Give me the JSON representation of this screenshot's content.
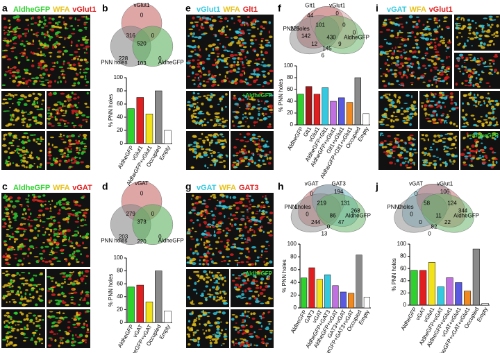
{
  "images": [
    {
      "letter": "a",
      "title": [
        {
          "text": "AldheGFP",
          "color": "#2fd12f"
        },
        {
          "text": "WFA",
          "color": "#e8c21a"
        },
        {
          "text": "vGlut1",
          "color": "#e02020"
        }
      ],
      "inset": null
    },
    {
      "letter": "c",
      "title": [
        {
          "text": "AldheGFP",
          "color": "#2fd12f"
        },
        {
          "text": "WFA",
          "color": "#e8c21a"
        },
        {
          "text": "vGAT",
          "color": "#e02020"
        }
      ],
      "inset": null
    },
    {
      "letter": "e",
      "title": [
        {
          "text": "vGlut1",
          "color": "#35c9e0"
        },
        {
          "text": "WFA",
          "color": "#e8c21a"
        },
        {
          "text": "Glt1",
          "color": "#e02020"
        }
      ],
      "inset": "+AldheGFP"
    },
    {
      "letter": "g",
      "title": [
        {
          "text": "vGAT",
          "color": "#35c9e0"
        },
        {
          "text": "WFA",
          "color": "#e8c21a"
        },
        {
          "text": "GAT3",
          "color": "#e02020"
        }
      ],
      "inset": "+AldheGFP"
    },
    {
      "letter": "i",
      "title": [
        {
          "text": "vGAT",
          "color": "#35c9e0"
        },
        {
          "text": "WFA",
          "color": "#e8c21a"
        },
        {
          "text": "vGlut1",
          "color": "#e02020"
        }
      ],
      "inset": "+AldheGFP"
    }
  ],
  "venns": [
    {
      "letter": "b",
      "sets": [
        {
          "name": "vGlut1",
          "color": "#c96a6a"
        },
        {
          "name": "PNN holes",
          "color": "#8a8a8a"
        },
        {
          "name": "AldheGFP",
          "color": "#5fb05f"
        }
      ],
      "counts": [
        0,
        316,
        0,
        520,
        228,
        103,
        0
      ]
    },
    {
      "letter": "d",
      "sets": [
        {
          "name": "vGAT",
          "color": "#c96a6a"
        },
        {
          "name": "PNN holes",
          "color": "#8a8a8a"
        },
        {
          "name": "AldheGFP",
          "color": "#5fb05f"
        }
      ],
      "counts": [
        0,
        279,
        0,
        373,
        203,
        220,
        0
      ]
    },
    {
      "letter": "f",
      "sets": [
        {
          "name": "Glt1",
          "color": "#b24a4a"
        },
        {
          "name": "vGlut1",
          "color": "#d9a0a0"
        },
        {
          "name": "PNN holes",
          "color": "#8a8a8a"
        },
        {
          "name": "AldheGFP",
          "color": "#5fb05f"
        }
      ],
      "counts": [
        44,
        0,
        225,
        101,
        0,
        142,
        430,
        0,
        12,
        145,
        9,
        6
      ]
    },
    {
      "letter": "h",
      "sets": [
        {
          "name": "vGAT",
          "color": "#c96a6a"
        },
        {
          "name": "GAT3",
          "color": "#6ab8c9"
        },
        {
          "name": "PNN holes",
          "color": "#8a8a8a"
        },
        {
          "name": "AldheGFP",
          "color": "#5fb05f"
        }
      ],
      "counts": [
        0,
        194,
        1,
        219,
        131,
        0,
        86,
        268,
        244,
        0,
        47,
        13
      ]
    },
    {
      "letter": "j",
      "sets": [
        {
          "name": "vGAT",
          "color": "#6ab8c9"
        },
        {
          "name": "vGlut1",
          "color": "#c96a6a"
        },
        {
          "name": "PNN holes",
          "color": "#8a8a8a"
        },
        {
          "name": "AldheGFP",
          "color": "#5fb05f"
        }
      ],
      "counts": [
        0,
        106,
        0,
        58,
        124,
        0,
        11,
        344,
        0,
        82,
        22,
        0
      ]
    }
  ],
  "chart_data": [
    {
      "type": "bar",
      "panel": "b",
      "y_label": "% PNN holes",
      "ylim": [
        0,
        100
      ],
      "yticks": [
        0,
        20,
        40,
        60,
        80,
        100
      ],
      "categories": [
        "AldheGFP",
        "vGlut1",
        "AldheGFP+vGlut1",
        "Occupied",
        "Empty"
      ],
      "values": [
        53,
        70,
        45,
        80,
        20
      ],
      "colors": [
        "#2fd12f",
        "#e02020",
        "#f2e21a",
        "#8a8a8a",
        "#ffffff"
      ]
    },
    {
      "type": "bar",
      "panel": "d",
      "y_label": "% PNN holes",
      "ylim": [
        0,
        100
      ],
      "yticks": [
        0,
        20,
        40,
        60,
        80,
        100
      ],
      "categories": [
        "AldheGFP",
        "vGAT",
        "AldheGFP+vGAT",
        "Occupied",
        "Empty"
      ],
      "values": [
        55,
        58,
        32,
        80,
        18
      ],
      "colors": [
        "#2fd12f",
        "#e02020",
        "#f2e21a",
        "#8a8a8a",
        "#ffffff"
      ]
    },
    {
      "type": "bar",
      "panel": "f",
      "y_label": "% PNN holes",
      "ylim": [
        0,
        100
      ],
      "yticks": [
        0,
        20,
        40,
        60,
        80,
        100
      ],
      "categories": [
        "AldheGFP",
        "Glt1",
        "vGlut1",
        "AldheGFP+Glt1",
        "AldheGFP+vGlut1",
        "Glt1+vGlut1",
        "AldheGFP+Glt1+vGlut1",
        "Occupied",
        "Empty"
      ],
      "values": [
        52,
        65,
        52,
        63,
        40,
        46,
        38,
        80,
        19
      ],
      "colors": [
        "#2fd12f",
        "#a01818",
        "#e02020",
        "#35c9e0",
        "#c070e0",
        "#5a5ae0",
        "#f08a20",
        "#8a8a8a",
        "#ffffff"
      ]
    },
    {
      "type": "bar",
      "panel": "h",
      "y_label": "% PNN holes",
      "ylim": [
        0,
        100
      ],
      "yticks": [
        0,
        20,
        40,
        60,
        80,
        100
      ],
      "categories": [
        "AldheGFP",
        "GAT3",
        "vGAT",
        "AldheGFP+GAT3",
        "AldheGFP+vGAT",
        "GAT3+vGAT",
        "AldheGFP+GAT3+vGAT",
        "Occupied",
        "Empty"
      ],
      "values": [
        47,
        63,
        45,
        52,
        35,
        25,
        23,
        83,
        17
      ],
      "colors": [
        "#2fd12f",
        "#e02020",
        "#f2e21a",
        "#35c9e0",
        "#c070e0",
        "#5a5ae0",
        "#f08a20",
        "#8a8a8a",
        "#ffffff"
      ]
    },
    {
      "type": "bar",
      "panel": "j",
      "y_label": "% PNN holes",
      "ylim": [
        0,
        100
      ],
      "yticks": [
        0,
        20,
        40,
        60,
        80,
        100
      ],
      "categories": [
        "AldheGFP",
        "vGAT",
        "vGlut1",
        "AldheGFP+vGAT",
        "AldheGFP+vGlut1",
        "vGAT+vGlut1",
        "AldheGFP+vGAT+vGlut1",
        "Occupied",
        "Empty"
      ],
      "values": [
        57,
        57,
        70,
        30,
        45,
        37,
        23,
        92,
        3
      ],
      "colors": [
        "#2fd12f",
        "#e02020",
        "#f2e21a",
        "#35c9e0",
        "#c070e0",
        "#5a5ae0",
        "#f08a20",
        "#8a8a8a",
        "#ffffff"
      ]
    }
  ]
}
